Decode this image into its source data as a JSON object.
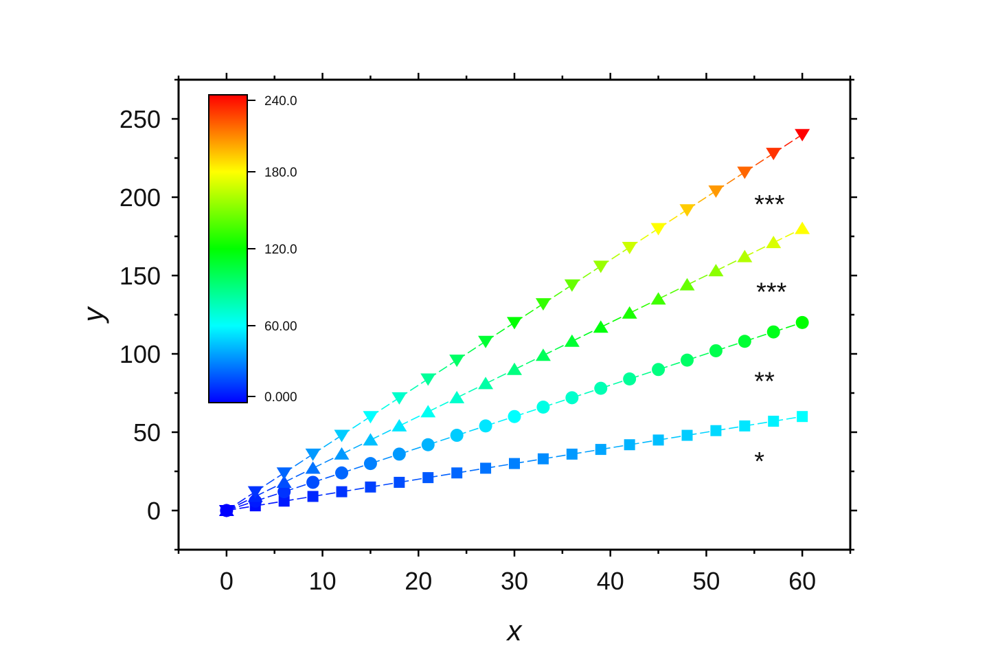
{
  "chart_data": {
    "type": "scatter",
    "xlabel": "x",
    "ylabel": "y",
    "xlim": [
      -5,
      65
    ],
    "ylim": [
      -25,
      275
    ],
    "x_ticks": [
      0,
      10,
      20,
      30,
      40,
      50,
      60
    ],
    "x_tick_labels": [
      "0",
      "10",
      "20",
      "30",
      "40",
      "50",
      "60"
    ],
    "y_ticks": [
      0,
      50,
      100,
      150,
      200,
      250
    ],
    "y_tick_labels": [
      "0",
      "50",
      "100",
      "150",
      "200",
      "250"
    ],
    "x": [
      0,
      3,
      6,
      9,
      12,
      15,
      18,
      21,
      24,
      27,
      30,
      33,
      36,
      39,
      42,
      45,
      48,
      51,
      54,
      57,
      60
    ],
    "series": [
      {
        "marker": "square",
        "slope": 1,
        "y": [
          0,
          3,
          6,
          9,
          12,
          15,
          18,
          21,
          24,
          27,
          30,
          33,
          36,
          39,
          42,
          45,
          48,
          51,
          54,
          57,
          60
        ]
      },
      {
        "marker": "circle",
        "slope": 2,
        "y": [
          0,
          6,
          12,
          18,
          24,
          30,
          36,
          42,
          48,
          54,
          60,
          66,
          72,
          78,
          84,
          90,
          96,
          102,
          108,
          114,
          120
        ]
      },
      {
        "marker": "triangle-up",
        "slope": 3,
        "y": [
          0,
          9,
          18,
          27,
          36,
          45,
          54,
          63,
          72,
          81,
          90,
          99,
          108,
          117,
          126,
          135,
          144,
          153,
          162,
          171,
          180
        ]
      },
      {
        "marker": "triangle-down",
        "slope": 4,
        "y": [
          0,
          12,
          24,
          36,
          48,
          60,
          72,
          84,
          96,
          108,
          120,
          132,
          144,
          156,
          168,
          180,
          192,
          204,
          216,
          228,
          240
        ]
      }
    ],
    "color_scale": {
      "min": 0,
      "max": 240,
      "colormap": "rainbow",
      "ticks": [
        0,
        60,
        120,
        180,
        240
      ],
      "tick_labels": [
        "0.000",
        "60.00",
        "120.0",
        "180.0",
        "240.0"
      ],
      "placement": "top-left"
    },
    "annotations": [
      {
        "text": "***",
        "x": 55,
        "y": 197
      },
      {
        "text": "***",
        "x": 55.2,
        "y": 141
      },
      {
        "text": "**",
        "x": 55,
        "y": 84
      },
      {
        "text": "*",
        "x": 55,
        "y": 33
      }
    ],
    "grid": false
  }
}
